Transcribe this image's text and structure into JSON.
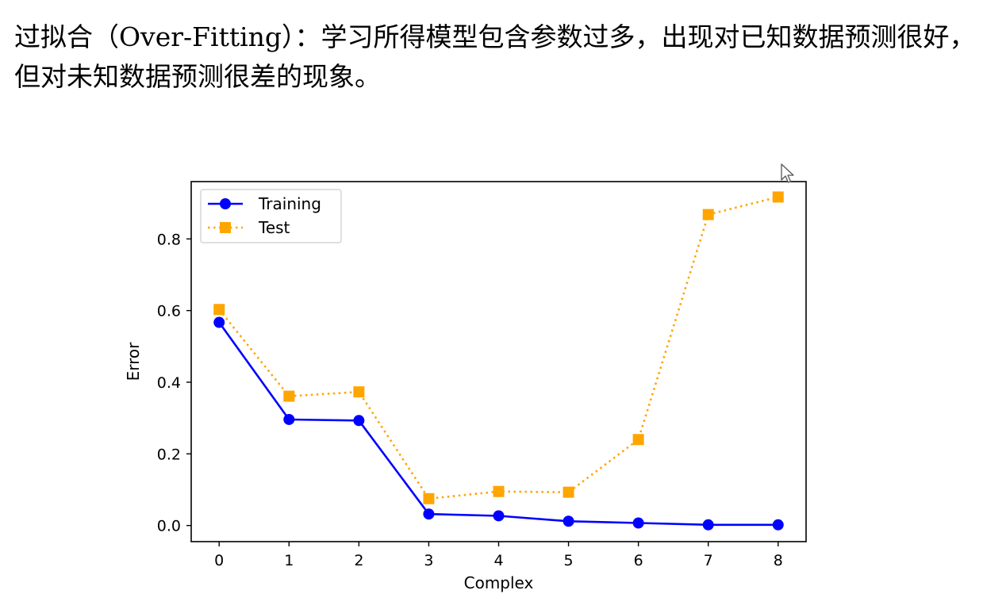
{
  "slide": {
    "text": "过拟合（Over-Fitting）：学习所得模型包含参数过多，出现对已知数据预测很好，但对未知数据预测很差的现象。"
  },
  "chart_data": {
    "type": "line",
    "title": "",
    "xlabel": "Complex",
    "ylabel": "Error",
    "x": [
      0,
      1,
      2,
      3,
      4,
      5,
      6,
      7,
      8
    ],
    "xticks": [
      "0",
      "1",
      "2",
      "3",
      "4",
      "5",
      "6",
      "7",
      "8"
    ],
    "yticks": [
      "0.0",
      "0.2",
      "0.4",
      "0.6",
      "0.8"
    ],
    "xlim": [
      -0.4,
      8.4
    ],
    "ylim": [
      -0.045,
      0.96
    ],
    "grid": false,
    "legend_position": "top-left",
    "series": [
      {
        "name": "Training",
        "values": [
          0.567,
          0.296,
          0.293,
          0.032,
          0.027,
          0.012,
          0.007,
          0.002,
          0.002
        ],
        "color": "#0000ff",
        "marker": "circle",
        "line_style": "solid"
      },
      {
        "name": "Test",
        "values": [
          0.603,
          0.361,
          0.373,
          0.075,
          0.095,
          0.093,
          0.24,
          0.868,
          0.917
        ],
        "color": "#ffa500",
        "marker": "square",
        "line_style": "dotted"
      }
    ]
  }
}
